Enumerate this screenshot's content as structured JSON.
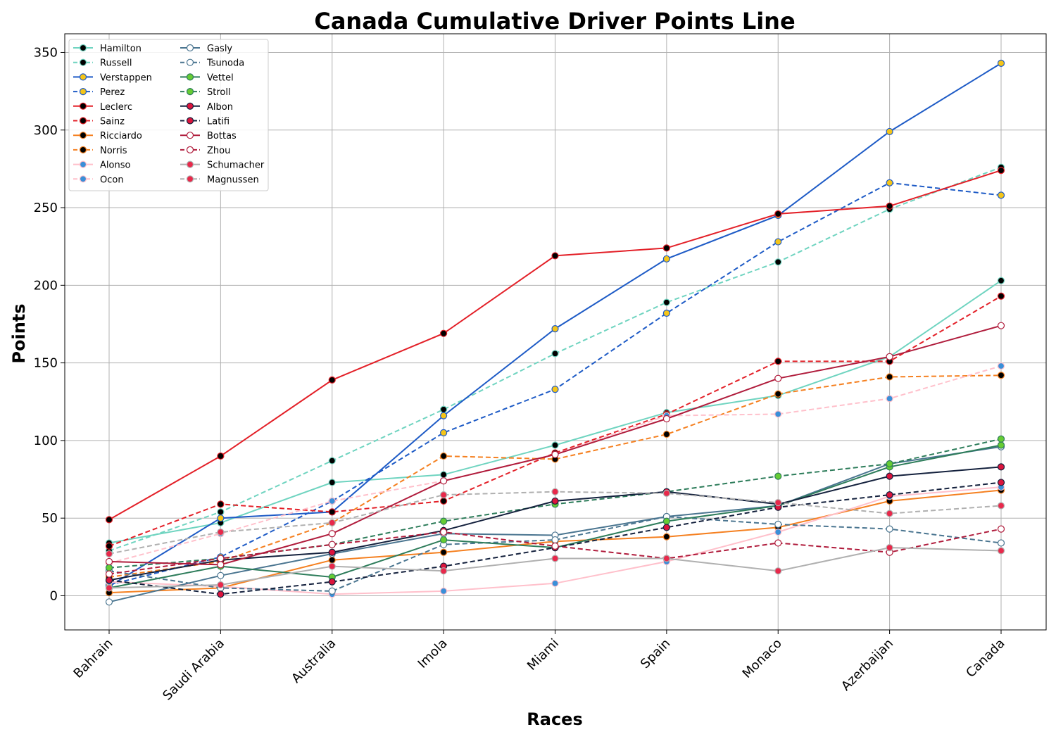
{
  "chart_data": {
    "type": "line",
    "title": "Canada Cumulative Driver Points Line",
    "xlabel": "Races",
    "ylabel": "Points",
    "categories": [
      "Bahrain",
      "Saudi Arabia",
      "Australia",
      "Imola",
      "Miami",
      "Spain",
      "Monaco",
      "Azerbaijan",
      "Canada"
    ],
    "ylim": [
      -22,
      362
    ],
    "yticks": [
      0,
      50,
      100,
      150,
      200,
      250,
      300,
      350
    ],
    "grid": true,
    "legend_position": "top-left",
    "legend_columns": 2,
    "series": [
      {
        "name": "Hamilton",
        "color": "#6fd4c0",
        "dash": "solid",
        "marker_fill": "#000000",
        "marker_stroke": "#6fd4c0",
        "values": [
          34,
          47,
          73,
          78,
          97,
          118,
          129,
          154,
          203
        ]
      },
      {
        "name": "Russell",
        "color": "#6fd4c0",
        "dash": "dashed",
        "marker_fill": "#000000",
        "marker_stroke": "#6fd4c0",
        "values": [
          29,
          54,
          87,
          120,
          156,
          189,
          215,
          249,
          276
        ]
      },
      {
        "name": "Verstappen",
        "color": "#1e5bc6",
        "dash": "solid",
        "marker_fill": "#f5c518",
        "marker_stroke": "#1e5bc6",
        "values": [
          6,
          50,
          54,
          116,
          172,
          217,
          245,
          299,
          343
        ]
      },
      {
        "name": "Perez",
        "color": "#1e5bc6",
        "dash": "dashed",
        "marker_fill": "#f5c518",
        "marker_stroke": "#1e5bc6",
        "values": [
          7,
          25,
          61,
          105,
          133,
          182,
          228,
          266,
          258
        ]
      },
      {
        "name": "Leclerc",
        "color": "#e32028",
        "dash": "solid",
        "marker_fill": "#000000",
        "marker_stroke": "#e32028",
        "values": [
          49,
          90,
          139,
          169,
          219,
          224,
          246,
          251,
          274
        ]
      },
      {
        "name": "Sainz",
        "color": "#e32028",
        "dash": "dashed",
        "marker_fill": "#000000",
        "marker_stroke": "#e32028",
        "values": [
          32,
          59,
          54,
          61,
          92,
          117,
          151,
          151,
          193
        ]
      },
      {
        "name": "Ricciardo",
        "color": "#f58020",
        "dash": "solid",
        "marker_fill": "#000000",
        "marker_stroke": "#f58020",
        "values": [
          2,
          5,
          23,
          28,
          35,
          38,
          44,
          61,
          68
        ]
      },
      {
        "name": "Norris",
        "color": "#f58020",
        "dash": "dashed",
        "marker_fill": "#000000",
        "marker_stroke": "#f58020",
        "values": [
          12,
          22,
          47,
          90,
          88,
          104,
          130,
          141,
          142
        ]
      },
      {
        "name": "Alonso",
        "color": "#ffc0cb",
        "dash": "solid",
        "marker_fill": "#3a8fd8",
        "marker_stroke": "#ffc0cb",
        "values": [
          9,
          6,
          1,
          3,
          8,
          22,
          41,
          64,
          70
        ]
      },
      {
        "name": "Ocon",
        "color": "#ffc0cb",
        "dash": "dashed",
        "marker_fill": "#3a8fd8",
        "marker_stroke": "#ffc0cb",
        "values": [
          21,
          40,
          61,
          74,
          91,
          116,
          117,
          127,
          148
        ]
      },
      {
        "name": "Gasly",
        "color": "#4a7590",
        "dash": "solid",
        "marker_fill": "#ffffff",
        "marker_stroke": "#4a7590",
        "values": [
          -4,
          13,
          27,
          40,
          39,
          51,
          58,
          85,
          96
        ]
      },
      {
        "name": "Tsunoda",
        "color": "#4a7590",
        "dash": "dashed",
        "marker_fill": "#ffffff",
        "marker_stroke": "#4a7590",
        "values": [
          16,
          5,
          3,
          33,
          36,
          51,
          46,
          43,
          34
        ]
      },
      {
        "name": "Vettel",
        "color": "#2e7d5b",
        "dash": "solid",
        "marker_fill": "#66cc33",
        "marker_stroke": "#2e7d5b",
        "values": [
          5,
          19,
          12,
          36,
          31,
          48,
          58,
          83,
          97
        ]
      },
      {
        "name": "Stroll",
        "color": "#2e7d5b",
        "dash": "dashed",
        "marker_fill": "#66cc33",
        "marker_stroke": "#2e7d5b",
        "values": [
          18,
          24,
          33,
          48,
          59,
          67,
          77,
          85,
          101
        ]
      },
      {
        "name": "Albon",
        "color": "#14213d",
        "dash": "solid",
        "marker_fill": "#dc143c",
        "marker_stroke": "#14213d",
        "values": [
          10,
          23,
          28,
          42,
          61,
          67,
          59,
          77,
          83
        ]
      },
      {
        "name": "Latifi",
        "color": "#14213d",
        "dash": "dashed",
        "marker_fill": "#dc143c",
        "marker_stroke": "#14213d",
        "values": [
          10,
          1,
          9,
          19,
          31,
          44,
          57,
          65,
          73
        ]
      },
      {
        "name": "Bottas",
        "color": "#b01c3c",
        "dash": "solid",
        "marker_fill": "#ffffff",
        "marker_stroke": "#b01c3c",
        "values": [
          22,
          20,
          40,
          74,
          91,
          114,
          140,
          154,
          174
        ]
      },
      {
        "name": "Zhou",
        "color": "#b01c3c",
        "dash": "dashed",
        "marker_fill": "#ffffff",
        "marker_stroke": "#b01c3c",
        "values": [
          14,
          24,
          33,
          41,
          32,
          24,
          34,
          28,
          43
        ]
      },
      {
        "name": "Schumacher",
        "color": "#b0b0b0",
        "dash": "solid",
        "marker_fill": "#e8294b",
        "marker_stroke": "#b0b0b0",
        "values": [
          5,
          7,
          19,
          16,
          24,
          24,
          16,
          31,
          29
        ]
      },
      {
        "name": "Magnussen",
        "color": "#b0b0b0",
        "dash": "dashed",
        "marker_fill": "#e8294b",
        "marker_stroke": "#b0b0b0",
        "values": [
          27,
          41,
          47,
          65,
          67,
          66,
          60,
          53,
          58
        ]
      }
    ]
  }
}
